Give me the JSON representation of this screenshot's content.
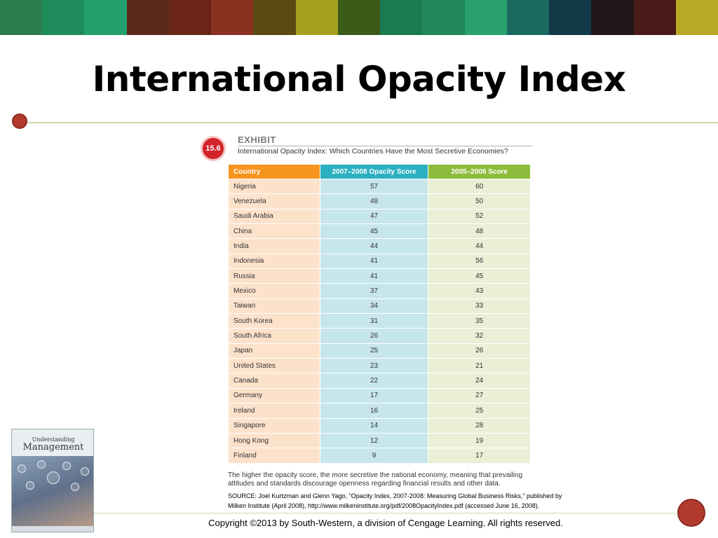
{
  "slide": {
    "title": "International Opacity Index",
    "copyright": "Copyright ©2013 by South-Western, a division of Cengage Learning. All rights reserved."
  },
  "exhibit": {
    "number": "15.6",
    "label": "EXHIBIT",
    "caption": "International Opacity Index: Which Countries Have the Most Secretive Economies?",
    "note": "The higher the opacity score, the more secretive the national economy, meaning that prevailing attitudes and standards discourage openness regarding financial results and other data.",
    "source_line1": "SOURCE: Joel Kurtzman and Glenn Yago, “Opacity Index, 2007-2008: Measuring Global Business Risks,”  published by",
    "source_line2": "Milken Institute (April 2008), http://www.milkeninstitute.org/pdf/2008OpacityIndex.pdf (accessed June 16, 2008)."
  },
  "table": {
    "headers": [
      "Country",
      "2007–2008  Opacity Score",
      "2005–2006 Score"
    ],
    "rows": [
      [
        "Nigeria",
        "57",
        "60"
      ],
      [
        "Venezuela",
        "48",
        "50"
      ],
      [
        "Saudi Arabia",
        "47",
        "52"
      ],
      [
        "China",
        "45",
        "48"
      ],
      [
        "India",
        "44",
        "44"
      ],
      [
        "Indonesia",
        "41",
        "56"
      ],
      [
        "Russia",
        "41",
        "45"
      ],
      [
        "Mexico",
        "37",
        "43"
      ],
      [
        "Taiwan",
        "34",
        "33"
      ],
      [
        "South Korea",
        "31",
        "35"
      ],
      [
        "South Africa",
        "26",
        "32"
      ],
      [
        "Japan",
        "25",
        "26"
      ],
      [
        "United States",
        "23",
        "21"
      ],
      [
        "Canada",
        "22",
        "24"
      ],
      [
        "Germany",
        "17",
        "27"
      ],
      [
        "Ireland",
        "16",
        "25"
      ],
      [
        "Singapore",
        "14",
        "28"
      ],
      [
        "Hong Kong",
        "12",
        "19"
      ],
      [
        "Finland",
        "9",
        "17"
      ]
    ]
  },
  "book": {
    "title_line1": "Understanding",
    "title_line2": "Management"
  },
  "colors": {
    "band": [
      "#2e7d4f",
      "#1f8a5a",
      "#23a06c",
      "#5a2a1a",
      "#6b2418",
      "#8a3222",
      "#5c4a12",
      "#a8a020",
      "#3c5a18",
      "#1a7a50",
      "#208858",
      "#28a070",
      "#1a6a60",
      "#103a48",
      "#201818",
      "#4a1a18",
      "#b8a828"
    ],
    "accent_red": "#b23a2c",
    "header_country": "#f7941d",
    "header_2007": "#2bb0c1",
    "header_2005": "#8dbb3c"
  }
}
